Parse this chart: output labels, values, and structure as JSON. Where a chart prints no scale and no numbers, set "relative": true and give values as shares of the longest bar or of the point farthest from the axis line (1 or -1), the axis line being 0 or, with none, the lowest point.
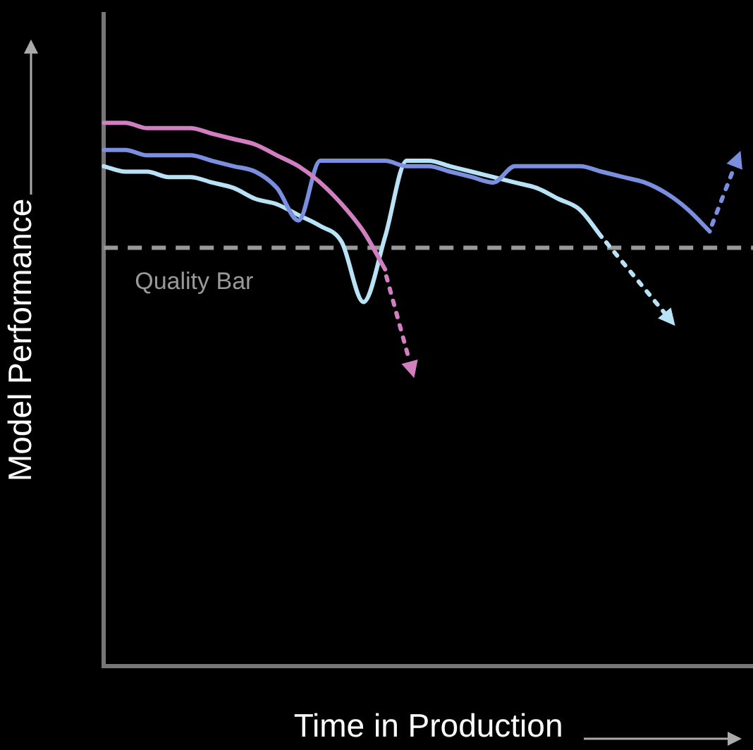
{
  "chart_data": {
    "type": "line",
    "xlabel": "Time in Production",
    "ylabel": "Model Performance",
    "relative": true,
    "legend": false,
    "marker": "none",
    "categories": [
      null,
      null,
      null,
      null,
      null,
      null,
      null,
      null,
      null,
      null,
      null,
      null,
      null,
      null,
      null,
      null,
      null,
      null,
      null,
      null,
      null,
      null,
      null,
      null,
      null,
      null,
      null,
      null,
      null,
      null,
      null
    ],
    "series": [
      {
        "color": "#d17fc0",
        "values": [
          1.0,
          1.0,
          0.99,
          0.99,
          0.99,
          0.98,
          0.97,
          0.96,
          0.94,
          0.92,
          0.89,
          0.85,
          0.8,
          0.73,
          null,
          null,
          null,
          null,
          null,
          null,
          null,
          null,
          null,
          null,
          null,
          null,
          null,
          null,
          null,
          null,
          null
        ]
      },
      {
        "color": "#7b8fe0",
        "values": [
          0.95,
          0.95,
          0.94,
          0.94,
          0.94,
          0.93,
          0.92,
          0.91,
          0.88,
          0.82,
          0.93,
          0.93,
          0.93,
          0.93,
          0.92,
          0.92,
          0.91,
          0.9,
          0.89,
          0.92,
          0.92,
          0.92,
          0.92,
          0.91,
          0.9,
          0.89,
          0.87,
          0.84,
          0.8,
          null,
          null
        ]
      },
      {
        "color": "#b8e2f5",
        "values": [
          0.92,
          0.91,
          0.91,
          0.9,
          0.9,
          0.89,
          0.88,
          0.86,
          0.85,
          0.83,
          0.81,
          0.78,
          0.67,
          0.79,
          0.93,
          0.93,
          0.92,
          0.91,
          0.9,
          0.89,
          0.88,
          0.86,
          0.84,
          0.79,
          null,
          null,
          null,
          null,
          null,
          null,
          null
        ]
      }
    ],
    "ref_lines": [
      {
        "axis": "y",
        "value": 0.77,
        "label": "Quality Bar",
        "color": "#999999",
        "line_style": "dashed"
      }
    ]
  }
}
